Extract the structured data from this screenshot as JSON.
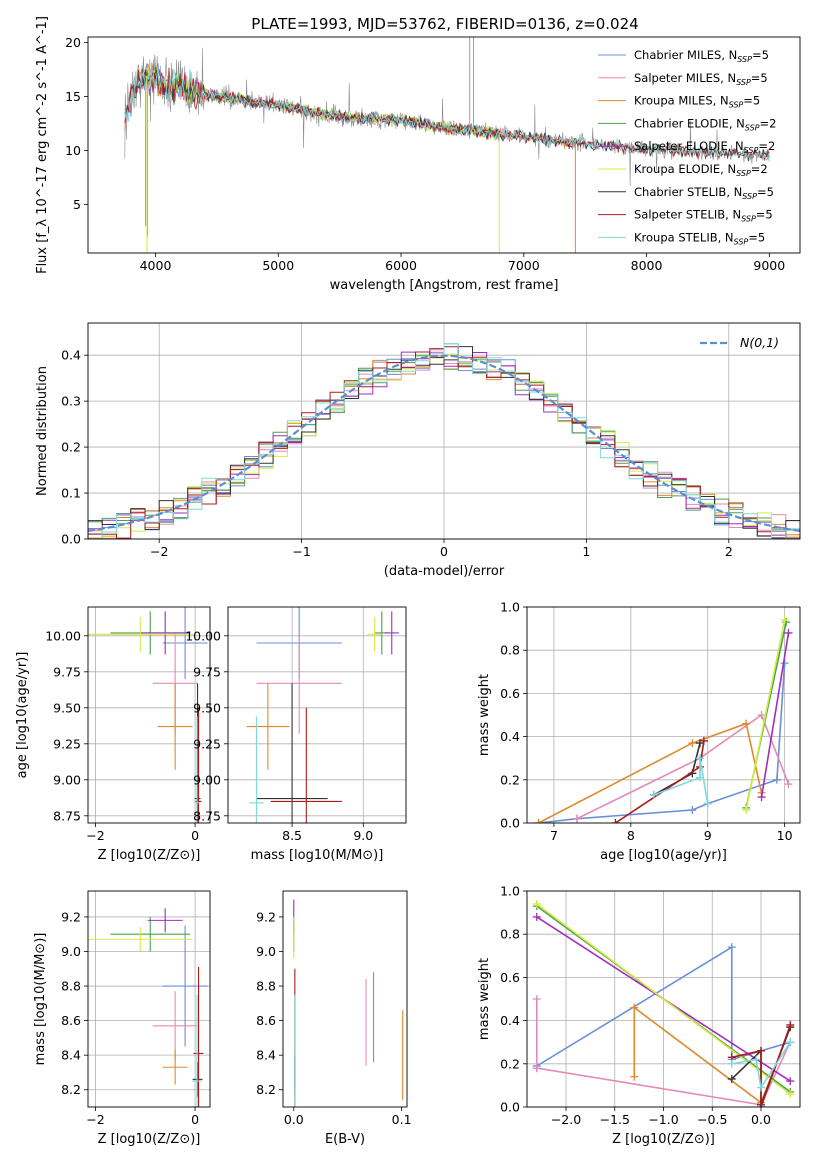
{
  "figure": {
    "title": "PLATE=1993, MJD=53762, FIBERID=0136, z=0.024"
  },
  "colors": {
    "Chabrier MILES": "#6a8fd8",
    "Salpeter MILES": "#e48ab8",
    "Kroupa MILES": "#dd8a2e",
    "Chabrier ELODIE": "#4e9f4e",
    "Salpeter ELODIE": "#a22dbd",
    "Kroupa ELODIE": "#d4ec40",
    "Chabrier STELIB": "#333333",
    "Salpeter STELIB": "#aa1c1c",
    "Kroupa STELIB": "#7fd8dc",
    "data": "#8a8a8a",
    "normal": "#5b8fd4",
    "grid": "#b0b0b0"
  },
  "chart_data": [
    {
      "id": "spectrum",
      "type": "line",
      "xlabel": "wavelength [Angstrom, rest frame]",
      "ylabel": "Flux [f_λ 10^-17 erg cm^-2 s^-1 A^-1]",
      "xlim": [
        3450,
        9250
      ],
      "ylim": [
        0.5,
        20.5
      ],
      "xticks": [
        4000,
        5000,
        6000,
        7000,
        8000,
        9000
      ],
      "yticks": [
        5,
        10,
        15,
        20
      ],
      "grid": false,
      "legend_position": "top-right",
      "legend": [
        {
          "name": "Chabrier MILES",
          "suffix": "5"
        },
        {
          "name": "Salpeter MILES",
          "suffix": "5"
        },
        {
          "name": "Kroupa MILES",
          "suffix": "5"
        },
        {
          "name": "Chabrier ELODIE",
          "suffix": "2"
        },
        {
          "name": "Salpeter ELODIE",
          "suffix": "2"
        },
        {
          "name": "Kroupa ELODIE",
          "suffix": "2"
        },
        {
          "name": "Chabrier STELIB",
          "suffix": "5"
        },
        {
          "name": "Salpeter STELIB",
          "suffix": "5"
        },
        {
          "name": "Kroupa STELIB",
          "suffix": "5"
        }
      ],
      "continuum": {
        "x": [
          3750,
          3850,
          3950,
          4000,
          4100,
          4300,
          4500,
          4800,
          5000,
          5300,
          5600,
          6000,
          6300,
          6600,
          6900,
          7200,
          7500,
          7800,
          8200,
          8600,
          9000
        ],
        "y": [
          13,
          16.5,
          17,
          16.5,
          16,
          15.5,
          15,
          14.5,
          14.2,
          13.5,
          13,
          12.8,
          12.2,
          11.8,
          11.4,
          11,
          10.6,
          10.3,
          10,
          9.8,
          9.5
        ]
      }
    },
    {
      "id": "residuals",
      "type": "step",
      "xlabel": "(data-model)/error",
      "ylabel": "Normed distribution",
      "xlim": [
        -2.5,
        2.5
      ],
      "ylim": [
        0,
        0.47
      ],
      "xticks": [
        -2,
        -1,
        0,
        1,
        2
      ],
      "yticks": [
        0.0,
        0.1,
        0.2,
        0.3,
        0.4
      ],
      "grid": true,
      "legend_position": "top-right",
      "legend_label": "N(0,1)",
      "bin_width": 0.1
    },
    {
      "id": "age-vs-Z",
      "type": "errorbar",
      "xlabel": "Z [log10(Z/Z⊙)]",
      "ylabel": "age  [log10(age/yr)]",
      "xlim": [
        -2.15,
        0.3
      ],
      "ylim": [
        8.7,
        10.2
      ],
      "xticks": [
        -2,
        0
      ],
      "yticks": [
        8.75,
        9.0,
        9.25,
        9.5,
        9.75,
        10.0
      ],
      "grid": true,
      "points": [
        {
          "model": "Chabrier MILES",
          "x": -0.2,
          "xerr": 0.45,
          "y": 9.95,
          "yerr": 0.25
        },
        {
          "model": "Salpeter MILES",
          "x": -0.4,
          "xerr": 0.45,
          "y": 9.67,
          "yerr": 0.35
        },
        {
          "model": "Kroupa MILES",
          "x": -0.4,
          "xerr": 0.35,
          "y": 9.37,
          "yerr": 0.3
        },
        {
          "model": "Chabrier ELODIE",
          "x": -0.9,
          "xerr": 0.8,
          "y": 10.02,
          "yerr": 0.15
        },
        {
          "model": "Salpeter ELODIE",
          "x": -0.6,
          "xerr": 0.5,
          "y": 10.02,
          "yerr": 0.15
        },
        {
          "model": "Kroupa ELODIE",
          "x": -1.1,
          "xerr": 1.1,
          "y": 10.01,
          "yerr": 0.12
        },
        {
          "model": "Chabrier STELIB",
          "x": 0.05,
          "xerr": 0.06,
          "y": 8.87,
          "yerr": 0.8
        },
        {
          "model": "Salpeter STELIB",
          "x": 0.07,
          "xerr": 0.06,
          "y": 8.85,
          "yerr": 0.65
        },
        {
          "model": "Kroupa STELIB",
          "x": 0.04,
          "xerr": 0.05,
          "y": 8.84,
          "yerr": 0.6
        }
      ]
    },
    {
      "id": "age-vs-mass",
      "type": "errorbar",
      "xlabel": "mass [log10(M/M⊙)]",
      "ylabel": "",
      "xlim": [
        8.05,
        9.3
      ],
      "ylim": [
        8.7,
        10.2
      ],
      "xticks": [
        8.5,
        9.0
      ],
      "yticks": [
        8.75,
        9.0,
        9.25,
        9.5,
        9.75,
        10.0
      ],
      "grid": true,
      "points": [
        {
          "model": "Chabrier MILES",
          "x": 8.55,
          "xerr": 0.3,
          "y": 9.95,
          "yerr": 0.25
        },
        {
          "model": "Salpeter MILES",
          "x": 8.55,
          "xerr": 0.3,
          "y": 9.67,
          "yerr": 0.35
        },
        {
          "model": "Kroupa MILES",
          "x": 8.33,
          "xerr": 0.15,
          "y": 9.37,
          "yerr": 0.3
        },
        {
          "model": "Chabrier ELODIE",
          "x": 9.13,
          "xerr": 0.05,
          "y": 10.02,
          "yerr": 0.15
        },
        {
          "model": "Salpeter ELODIE",
          "x": 9.2,
          "xerr": 0.05,
          "y": 10.02,
          "yerr": 0.15
        },
        {
          "model": "Kroupa ELODIE",
          "x": 9.08,
          "xerr": 0.05,
          "y": 10.01,
          "yerr": 0.12
        },
        {
          "model": "Chabrier STELIB",
          "x": 8.5,
          "xerr": 0.25,
          "y": 8.87,
          "yerr": 0.8
        },
        {
          "model": "Salpeter STELIB",
          "x": 8.6,
          "xerr": 0.25,
          "y": 8.85,
          "yerr": 0.65
        },
        {
          "model": "Kroupa STELIB",
          "x": 8.25,
          "xerr": 0.05,
          "y": 8.84,
          "yerr": 0.6
        }
      ]
    },
    {
      "id": "weight-vs-age",
      "type": "line",
      "xlabel": "age  [log10(age/yr)]",
      "ylabel": "mass weight",
      "xlim": [
        6.65,
        10.2
      ],
      "ylim": [
        0,
        1.0
      ],
      "xticks": [
        7,
        8,
        9,
        10
      ],
      "yticks": [
        0.0,
        0.2,
        0.4,
        0.6,
        0.8,
        1.0
      ],
      "grid": true,
      "series": [
        {
          "model": "Chabrier MILES",
          "x": [
            6.8,
            7.3,
            8.8,
            9.0,
            9.9,
            10.0
          ],
          "y": [
            0.0,
            0.02,
            0.06,
            0.09,
            0.2,
            0.74
          ]
        },
        {
          "model": "Salpeter MILES",
          "x": [
            7.3,
            8.9,
            9.7,
            10.05
          ],
          "y": [
            0.02,
            0.3,
            0.5,
            0.18
          ]
        },
        {
          "model": "Kroupa MILES",
          "x": [
            6.8,
            8.8,
            9.5,
            9.7
          ],
          "y": [
            0.0,
            0.37,
            0.46,
            0.14
          ]
        },
        {
          "model": "Chabrier ELODIE",
          "x": [
            9.5,
            10.02
          ],
          "y": [
            0.07,
            0.93
          ]
        },
        {
          "model": "Salpeter ELODIE",
          "x": [
            9.7,
            10.05
          ],
          "y": [
            0.12,
            0.88
          ]
        },
        {
          "model": "Kroupa ELODIE",
          "x": [
            9.5,
            10.0
          ],
          "y": [
            0.06,
            0.94
          ]
        },
        {
          "model": "Chabrier STELIB",
          "x": [
            8.3,
            8.8,
            8.9
          ],
          "y": [
            0.13,
            0.23,
            0.37
          ]
        },
        {
          "model": "Salpeter STELIB",
          "x": [
            7.8,
            8.9,
            8.95
          ],
          "y": [
            0.0,
            0.26,
            0.38
          ]
        },
        {
          "model": "Kroupa STELIB",
          "x": [
            8.3,
            8.9,
            8.9,
            9.0
          ],
          "y": [
            0.13,
            0.21,
            0.3,
            0.09
          ]
        }
      ]
    },
    {
      "id": "mass-vs-Z",
      "type": "errorbar",
      "xlabel": "Z [log10(Z/Z⊙)]",
      "ylabel": "mass [log10(M/M⊙)]",
      "xlim": [
        -2.15,
        0.3
      ],
      "ylim": [
        8.1,
        9.35
      ],
      "xticks": [
        -2,
        0
      ],
      "yticks": [
        8.2,
        8.4,
        8.6,
        8.8,
        9.0,
        9.2
      ],
      "grid": true,
      "points": [
        {
          "model": "Chabrier MILES",
          "x": -0.2,
          "xerr": 0.45,
          "y": 8.8,
          "yerr": 0.35
        },
        {
          "model": "Salpeter MILES",
          "x": -0.4,
          "xerr": 0.45,
          "y": 8.57,
          "yerr": 0.2
        },
        {
          "model": "Kroupa MILES",
          "x": -0.4,
          "xerr": 0.25,
          "y": 8.33,
          "yerr": 0.1
        },
        {
          "model": "Chabrier ELODIE",
          "x": -0.9,
          "xerr": 0.8,
          "y": 9.1,
          "yerr": 0.1
        },
        {
          "model": "Salpeter ELODIE",
          "x": -0.6,
          "xerr": 0.35,
          "y": 9.18,
          "yerr": 0.07
        },
        {
          "model": "Kroupa ELODIE",
          "x": -1.1,
          "xerr": 1.05,
          "y": 9.07,
          "yerr": 0.07
        },
        {
          "model": "Chabrier STELIB",
          "x": 0.05,
          "xerr": 0.1,
          "y": 8.26,
          "yerr": 0.1
        },
        {
          "model": "Salpeter STELIB",
          "x": 0.07,
          "xerr": 0.1,
          "y": 8.41,
          "yerr": 0.5
        },
        {
          "model": "Kroupa STELIB",
          "x": 0.04,
          "xerr": 0.1,
          "y": 8.25,
          "yerr": 0.5
        }
      ]
    },
    {
      "id": "mass-vs-EBV",
      "type": "errorbar",
      "xlabel": "E(B-V)",
      "ylabel": "",
      "xlim": [
        -0.01,
        0.105
      ],
      "ylim": [
        8.1,
        9.35
      ],
      "xticks": [
        0.0,
        0.1
      ],
      "yticks": [
        8.2,
        8.4,
        8.6,
        8.8,
        9.0,
        9.2
      ],
      "grid": false,
      "points": [
        {
          "model": "Chabrier MILES",
          "x": 0.074,
          "y": 8.62,
          "yerr": 0.26
        },
        {
          "model": "Salpeter MILES",
          "x": 0.067,
          "y": 8.59,
          "yerr": 0.25
        },
        {
          "model": "Kroupa MILES",
          "x": 0.101,
          "y": 8.4,
          "yerr": 0.26
        },
        {
          "model": "Chabrier ELODIE",
          "x": 0.0,
          "y": 9.1,
          "yerr": 0.1
        },
        {
          "model": "Salpeter ELODIE",
          "x": 0.0,
          "y": 9.2,
          "yerr": 0.1
        },
        {
          "model": "Kroupa ELODIE",
          "x": 0.0,
          "y": 9.08,
          "yerr": 0.12
        },
        {
          "model": "Chabrier STELIB",
          "x": 0.001,
          "y": 8.3,
          "yerr": 0.1
        },
        {
          "model": "Salpeter STELIB",
          "x": 0.001,
          "y": 8.5,
          "yerr": 0.4
        },
        {
          "model": "Kroupa STELIB",
          "x": 0.001,
          "y": 8.3,
          "yerr": 0.45
        }
      ]
    },
    {
      "id": "weight-vs-Z",
      "type": "line",
      "xlabel": "Z [log10(Z/Z⊙)]",
      "ylabel": "mass weight",
      "xlim": [
        -2.4,
        0.4
      ],
      "ylim": [
        0,
        1.0
      ],
      "xticks": [
        -2.0,
        -1.5,
        -1.0,
        -0.5,
        0.0
      ],
      "yticks": [
        0.0,
        0.2,
        0.4,
        0.6,
        0.8,
        1.0
      ],
      "grid": true,
      "series": [
        {
          "model": "Chabrier MILES",
          "x": [
            -2.3,
            -0.3,
            -0.3,
            0.3
          ],
          "y": [
            0.19,
            0.74,
            0.22,
            0.3
          ]
        },
        {
          "model": "Salpeter MILES",
          "x": [
            -2.3,
            -2.3,
            -2.3,
            0.0,
            0.3
          ],
          "y": [
            0.5,
            0.18,
            0.18,
            0.01,
            0.3
          ]
        },
        {
          "model": "Kroupa MILES",
          "x": [
            -1.3,
            -1.3,
            0.0,
            0.3
          ],
          "y": [
            0.14,
            0.46,
            0.02,
            0.37
          ]
        },
        {
          "model": "Chabrier ELODIE",
          "x": [
            -2.3,
            0.3
          ],
          "y": [
            0.93,
            0.07
          ]
        },
        {
          "model": "Salpeter ELODIE",
          "x": [
            -2.3,
            0.3
          ],
          "y": [
            0.88,
            0.12
          ]
        },
        {
          "model": "Kroupa ELODIE",
          "x": [
            -2.3,
            0.3
          ],
          "y": [
            0.94,
            0.06
          ]
        },
        {
          "model": "Chabrier STELIB",
          "x": [
            -0.3,
            0.0,
            0.0,
            0.3
          ],
          "y": [
            0.13,
            0.26,
            0.01,
            0.37
          ]
        },
        {
          "model": "Salpeter STELIB",
          "x": [
            -0.3,
            0.0,
            0.0,
            0.3
          ],
          "y": [
            0.23,
            0.26,
            0.0,
            0.38
          ]
        },
        {
          "model": "Kroupa STELIB",
          "x": [
            -0.3,
            -0.05,
            0.0,
            0.3
          ],
          "y": [
            0.2,
            0.22,
            0.09,
            0.3
          ]
        }
      ]
    }
  ]
}
